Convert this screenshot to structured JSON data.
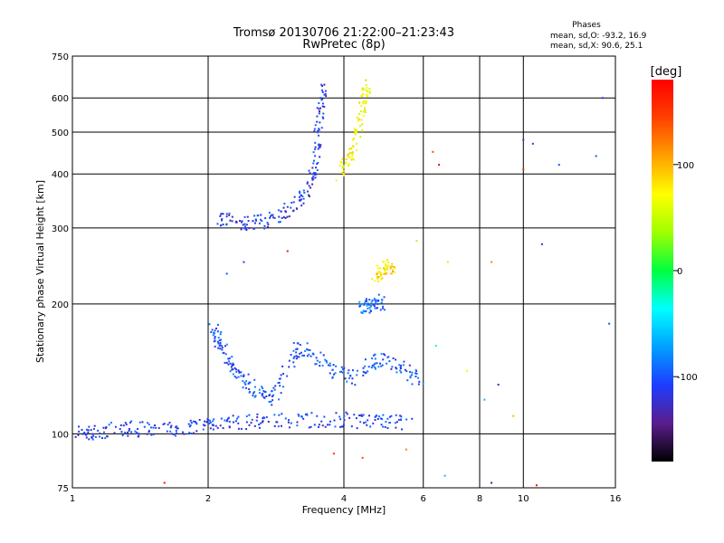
{
  "chart_data": {
    "type": "scatter",
    "title": "Tromsø 20130706 21:22:00–21:23:43",
    "subtitle": "RwPretec (8p)",
    "xlabel": "Frequency [MHz]",
    "ylabel": "Stationary phase Virtual Height [km]",
    "x_scale": "log",
    "y_scale": "log",
    "xlim": [
      1,
      16
    ],
    "ylim": [
      75,
      750
    ],
    "grid": true,
    "x_ticks": [
      1,
      2,
      4,
      6,
      8,
      10,
      16
    ],
    "y_ticks": [
      75,
      100,
      200,
      300,
      400,
      500,
      600,
      750
    ],
    "phase_header": "Phases",
    "phase_stats": [
      "mean, sd,O: -93.2, 16.9",
      "mean, sd,X:  90.6, 25.1"
    ],
    "colorbar": {
      "label": "[deg]",
      "range": [
        -180,
        180
      ],
      "ticks": [
        100,
        0,
        -100
      ],
      "colors": [
        "#000000",
        "#5a1e8c",
        "#1e3cff",
        "#00a0ff",
        "#00ffff",
        "#00ff40",
        "#a0ff00",
        "#ffff00",
        "#ffa000",
        "#ff4000",
        "#ff0000"
      ]
    },
    "traces": [
      {
        "name": "",
        "phase": -110,
        "points": [
          [
            1.0,
            100
          ],
          [
            1.1,
            101
          ],
          [
            1.2,
            102
          ],
          [
            1.35,
            103
          ],
          [
            1.5,
            102
          ],
          [
            1.7,
            103
          ],
          [
            1.9,
            104
          ],
          [
            2.05,
            105
          ],
          [
            2.3,
            106
          ],
          [
            2.6,
            107
          ],
          [
            3.0,
            107
          ],
          [
            3.5,
            108
          ],
          [
            4.0,
            108
          ],
          [
            4.5,
            107
          ],
          [
            5.0,
            107
          ],
          [
            5.6,
            106
          ]
        ]
      },
      {
        "name": "",
        "phase": -115,
        "points": [
          [
            2.1,
            318
          ],
          [
            2.25,
            312
          ],
          [
            2.45,
            308
          ],
          [
            2.7,
            312
          ],
          [
            2.95,
            325
          ],
          [
            3.2,
            345
          ],
          [
            3.35,
            375
          ],
          [
            3.45,
            420
          ],
          [
            3.5,
            480
          ],
          [
            3.55,
            560
          ],
          [
            3.6,
            640
          ]
        ]
      },
      {
        "name": "",
        "phase": 70,
        "points": [
          [
            3.9,
            400
          ],
          [
            4.1,
            430
          ],
          [
            4.25,
            470
          ],
          [
            4.35,
            530
          ],
          [
            4.45,
            600
          ],
          [
            4.5,
            640
          ]
        ]
      },
      {
        "name": "",
        "phase": 80,
        "points": [
          [
            4.7,
            232
          ],
          [
            4.85,
            238
          ],
          [
            5.0,
            245
          ],
          [
            5.1,
            240
          ]
        ]
      },
      {
        "name": "",
        "phase": -90,
        "points": [
          [
            4.3,
            195
          ],
          [
            4.5,
            198
          ],
          [
            4.7,
            202
          ],
          [
            4.9,
            200
          ]
        ]
      },
      {
        "name": "",
        "phase": -100,
        "points": [
          [
            2.05,
            180
          ],
          [
            2.1,
            165
          ],
          [
            2.2,
            150
          ],
          [
            2.3,
            140
          ],
          [
            2.45,
            130
          ],
          [
            2.6,
            125
          ],
          [
            2.8,
            120
          ],
          [
            3.0,
            145
          ],
          [
            3.2,
            160
          ],
          [
            3.5,
            150
          ],
          [
            3.8,
            140
          ],
          [
            4.2,
            135
          ],
          [
            4.6,
            145
          ],
          [
            5.0,
            150
          ],
          [
            5.5,
            140
          ],
          [
            6.0,
            130
          ]
        ]
      }
    ],
    "scatter_noise": [
      {
        "x": 6.3,
        "y": 450,
        "phase": 140
      },
      {
        "x": 6.5,
        "y": 420,
        "phase": 180
      },
      {
        "x": 6.8,
        "y": 250,
        "phase": 50
      },
      {
        "x": 6.4,
        "y": 160,
        "phase": -20
      },
      {
        "x": 7.5,
        "y": 140,
        "phase": 60
      },
      {
        "x": 8.2,
        "y": 120,
        "phase": -60
      },
      {
        "x": 8.5,
        "y": 250,
        "phase": 120
      },
      {
        "x": 8.8,
        "y": 130,
        "phase": -140
      },
      {
        "x": 9.5,
        "y": 110,
        "phase": 100
      },
      {
        "x": 10.0,
        "y": 480,
        "phase": -120
      },
      {
        "x": 10.0,
        "y": 410,
        "phase": 160
      },
      {
        "x": 10.5,
        "y": 470,
        "phase": -110
      },
      {
        "x": 11.0,
        "y": 275,
        "phase": -120
      },
      {
        "x": 12.0,
        "y": 420,
        "phase": -100
      },
      {
        "x": 14.5,
        "y": 440,
        "phase": -100
      },
      {
        "x": 15.0,
        "y": 600,
        "phase": -110
      },
      {
        "x": 15.5,
        "y": 180,
        "phase": -100
      },
      {
        "x": 3.8,
        "y": 90,
        "phase": 150
      },
      {
        "x": 4.4,
        "y": 88,
        "phase": 140
      },
      {
        "x": 5.5,
        "y": 92,
        "phase": 120
      },
      {
        "x": 6.7,
        "y": 80,
        "phase": -60
      },
      {
        "x": 8.5,
        "y": 77,
        "phase": -150
      },
      {
        "x": 10.7,
        "y": 76,
        "phase": 180
      },
      {
        "x": 1.6,
        "y": 77,
        "phase": 170
      },
      {
        "x": 2.4,
        "y": 250,
        "phase": -110
      },
      {
        "x": 2.2,
        "y": 235,
        "phase": -100
      },
      {
        "x": 3.0,
        "y": 265,
        "phase": 170
      },
      {
        "x": 5.8,
        "y": 280,
        "phase": 40
      }
    ]
  }
}
